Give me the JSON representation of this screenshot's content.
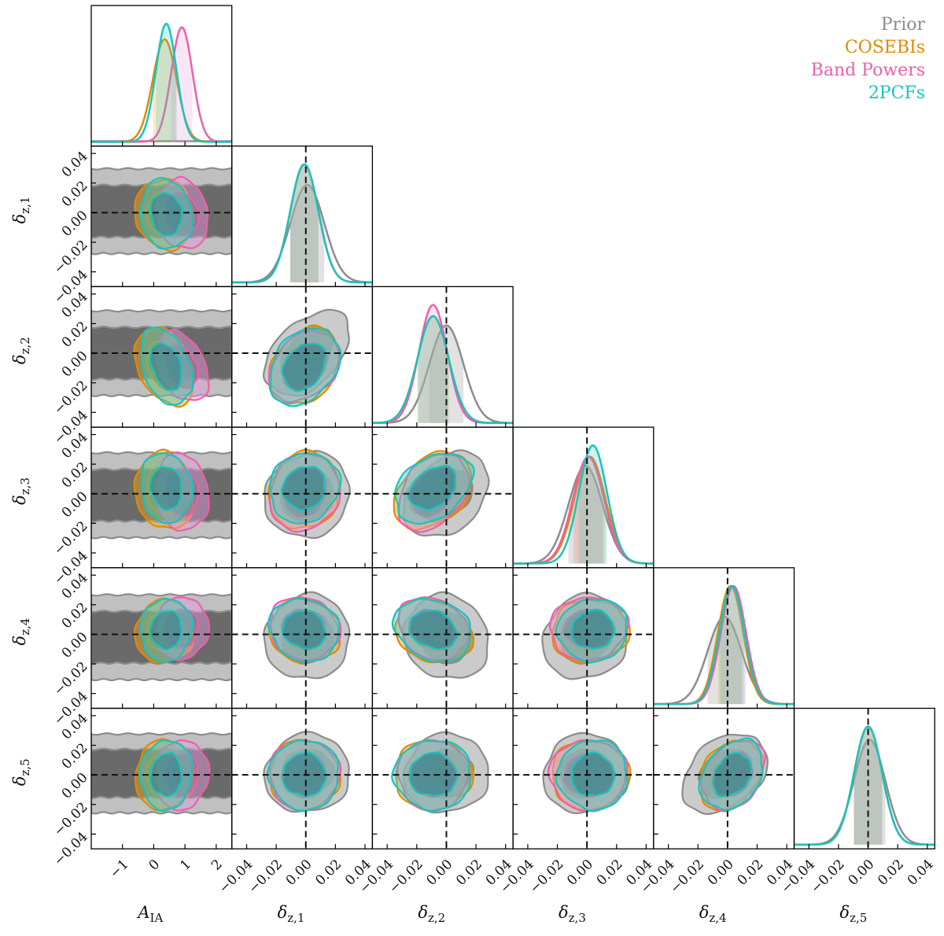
{
  "chart_data": {
    "type": "corner",
    "parameters": [
      {
        "name": "A",
        "sub": "IA",
        "range": [
          -2,
          2.5
        ],
        "ticks": [
          -1,
          0,
          1,
          2
        ],
        "tick_labels": [
          "−1",
          "0",
          "1",
          "2"
        ]
      },
      {
        "name": "δ",
        "sub": "z,1",
        "range": [
          -0.05,
          0.045
        ],
        "ticks": [
          -0.04,
          -0.02,
          0.0,
          0.02,
          0.04
        ],
        "tick_labels": [
          "−0.04",
          "−0.02",
          "0.00",
          "0.02",
          "0.04"
        ]
      },
      {
        "name": "δ",
        "sub": "z,2",
        "range": [
          -0.05,
          0.045
        ],
        "ticks": [
          -0.04,
          -0.02,
          0.0,
          0.02,
          0.04
        ],
        "tick_labels": [
          "−0.04",
          "−0.02",
          "0.00",
          "0.02",
          "0.04"
        ]
      },
      {
        "name": "δ",
        "sub": "z,3",
        "range": [
          -0.05,
          0.045
        ],
        "ticks": [
          -0.04,
          -0.02,
          0.0,
          0.02,
          0.04
        ],
        "tick_labels": [
          "−0.04",
          "−0.02",
          "0.00",
          "0.02",
          "0.04"
        ]
      },
      {
        "name": "δ",
        "sub": "z,4",
        "range": [
          -0.05,
          0.045
        ],
        "ticks": [
          -0.04,
          -0.02,
          0.0,
          0.02,
          0.04
        ],
        "tick_labels": [
          "−0.04",
          "−0.02",
          "0.00",
          "0.02",
          "0.04"
        ]
      },
      {
        "name": "δ",
        "sub": "z,5",
        "range": [
          -0.05,
          0.045
        ],
        "ticks": [
          -0.04,
          -0.02,
          0.0,
          0.02,
          0.04
        ],
        "tick_labels": [
          "−0.04",
          "−0.02",
          "0.00",
          "0.02",
          "0.04"
        ]
      }
    ],
    "truth_lines": [
      null,
      0.0,
      0.0,
      0.0,
      0.0,
      0.0
    ],
    "legend": {
      "position": "top-right"
    },
    "series": [
      {
        "name": "Prior",
        "color": "#8c8c8c",
        "fill": "#8c8c8c",
        "inner_fill": "#5a5a5a",
        "mean": [
          null,
          0.001,
          0.0,
          -0.001,
          -0.002,
          0.001
        ],
        "sigma": [
          null,
          0.0115,
          0.0115,
          0.0115,
          0.0115,
          0.0107
        ],
        "corr": [
          [
            1,
            0,
            0,
            0,
            0,
            0
          ],
          [
            0,
            1,
            0.45,
            0.1,
            0.05,
            0.05
          ],
          [
            0,
            0.45,
            1,
            0.35,
            -0.1,
            0.05
          ],
          [
            0,
            0.1,
            0.35,
            1,
            0.1,
            0.05
          ],
          [
            0,
            0.05,
            -0.1,
            0.1,
            1,
            0.35
          ],
          [
            0,
            0.05,
            0.05,
            0.05,
            0.35,
            1
          ]
        ],
        "flat_A": true
      },
      {
        "name": "COSEBIs",
        "color": "#e08a00",
        "fill": "#f5a623",
        "inner_fill": "#a7892a",
        "mean": [
          0.35,
          -0.001,
          -0.009,
          0.002,
          0.002,
          0.0
        ],
        "sigma": [
          0.38,
          0.0095,
          0.0105,
          0.0105,
          0.0085,
          0.0095
        ],
        "corr": [
          [
            1,
            -0.1,
            -0.35,
            -0.1,
            0.05,
            0.05
          ],
          [
            -0.1,
            1,
            0.3,
            0.1,
            -0.1,
            0.0
          ],
          [
            -0.35,
            0.3,
            1,
            0.35,
            -0.2,
            0.0
          ],
          [
            -0.1,
            0.1,
            0.35,
            1,
            0.05,
            0.0
          ],
          [
            0.05,
            -0.1,
            -0.2,
            0.05,
            1,
            0.3
          ],
          [
            0.05,
            0.0,
            0.0,
            0.0,
            0.3,
            1
          ]
        ]
      },
      {
        "name": "Band Powers",
        "color": "#ef5fa7",
        "fill": "#e59ae0",
        "inner_fill": "#8c6f91",
        "mean": [
          0.9,
          -0.001,
          -0.009,
          0.001,
          0.004,
          0.0
        ],
        "sigma": [
          0.34,
          0.0095,
          0.0095,
          0.0105,
          0.0085,
          0.0095
        ],
        "corr": [
          [
            1,
            -0.1,
            -0.35,
            -0.1,
            0.05,
            0.05
          ],
          [
            -0.1,
            1,
            0.3,
            0.1,
            -0.1,
            0.0
          ],
          [
            -0.35,
            0.3,
            1,
            0.35,
            -0.2,
            0.0
          ],
          [
            -0.1,
            0.1,
            0.35,
            1,
            0.05,
            0.0
          ],
          [
            0.05,
            -0.1,
            -0.2,
            0.05,
            1,
            0.3
          ],
          [
            0.05,
            0.0,
            0.0,
            0.0,
            0.3,
            1
          ]
        ]
      },
      {
        "name": "2PCFs",
        "color": "#17c4bd",
        "fill": "#44c7c4",
        "inner_fill": "#2f7f86",
        "mean": [
          0.4,
          -0.001,
          -0.009,
          0.004,
          0.003,
          0.0
        ],
        "sigma": [
          0.33,
          0.0095,
          0.0105,
          0.0095,
          0.0085,
          0.0095
        ],
        "corr": [
          [
            1,
            -0.1,
            -0.35,
            -0.1,
            0.05,
            0.05
          ],
          [
            -0.1,
            1,
            0.3,
            0.1,
            -0.1,
            0.0
          ],
          [
            -0.35,
            0.3,
            1,
            0.35,
            -0.2,
            0.0
          ],
          [
            -0.1,
            0.1,
            0.35,
            1,
            0.05,
            0.0
          ],
          [
            0.05,
            -0.1,
            -0.2,
            0.05,
            1,
            0.3
          ],
          [
            0.05,
            0.0,
            0.0,
            0.0,
            0.3,
            1
          ]
        ]
      }
    ]
  }
}
